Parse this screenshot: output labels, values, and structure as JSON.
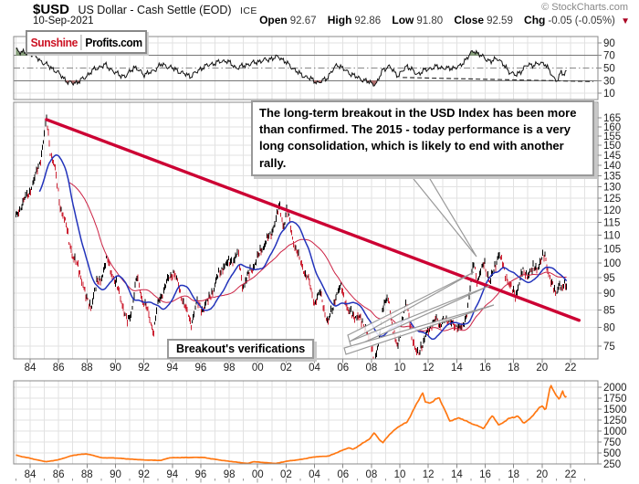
{
  "header": {
    "symbol": "$USD",
    "title": "US Dollar - Cash Settle (EOD)",
    "exchange": "ICE",
    "date": "10-Sep-2021",
    "copyright": "© StockCharts.com",
    "quote": {
      "open_label": "Open",
      "open": "92.67",
      "high_label": "High",
      "high": "92.86",
      "low_label": "Low",
      "low": "91.80",
      "close_label": "Close",
      "close": "92.59",
      "chg_label": "Chg",
      "chg": "-0.05 (-0.05%)",
      "down_arrow": "▼"
    }
  },
  "logo": {
    "part1": "Sunshine",
    "part2": "Profits.com"
  },
  "annotations": {
    "main_note": "The long-term breakout in the USD Index has been more than confirmed. The 2015 - today performance is a very long consolidation, which is likely to end with another rally.",
    "breakout_label": "Breakout's verifications"
  },
  "colors": {
    "candle_up": "#000000",
    "candle_down": "#cc2233",
    "trendline": "#cc0033",
    "ma_fast": "#2233bb",
    "ma_slow": "#cc2244",
    "gold_line": "#ff7711",
    "rsi_line": "#111111",
    "rsi_overbought_fill": "#7d9970",
    "rsi_oversold_fill": "#aa5f5f",
    "grid": "#e2e2e2",
    "panel_border": "#888888",
    "label_color": "#222222"
  },
  "axes": {
    "x_years": [
      1984,
      1986,
      1988,
      1990,
      1992,
      1994,
      1996,
      1998,
      2000,
      2002,
      2004,
      2006,
      2008,
      2010,
      2012,
      2014,
      2016,
      2018,
      2020,
      2022
    ],
    "x_labels": [
      "84",
      "86",
      "88",
      "90",
      "92",
      "94",
      "96",
      "98",
      "00",
      "02",
      "04",
      "06",
      "08",
      "10",
      "12",
      "14",
      "16",
      "18",
      "20",
      "22"
    ],
    "main_y": [
      165,
      160,
      155,
      150,
      145,
      140,
      135,
      130,
      125,
      120,
      115,
      110,
      105,
      100,
      95,
      90,
      85,
      80,
      75
    ],
    "rsi_y": [
      90,
      70,
      50,
      30,
      10
    ],
    "gold_y": [
      2000,
      1750,
      1500,
      1250,
      1000,
      750,
      500,
      250
    ]
  },
  "chart_data": [
    {
      "name": "RSI weekly indicator",
      "type": "line",
      "panel": "indicator-top",
      "ylim": [
        0,
        100
      ],
      "reference_levels": [
        70,
        50,
        30
      ],
      "dashed_trendline": {
        "from": [
          2010.2,
          35
        ],
        "to": [
          2023.6,
          28.5
        ]
      },
      "points": [
        [
          1983.0,
          80
        ],
        [
          1983.4,
          75
        ],
        [
          1984.2,
          72
        ],
        [
          1984.8,
          60
        ],
        [
          1985.4,
          52
        ],
        [
          1986.2,
          38
        ],
        [
          1986.7,
          26
        ],
        [
          1987.3,
          27
        ],
        [
          1987.8,
          34
        ],
        [
          1988.5,
          48
        ],
        [
          1989.3,
          55
        ],
        [
          1990.0,
          42
        ],
        [
          1990.7,
          36
        ],
        [
          1991.3,
          52
        ],
        [
          1992.0,
          40
        ],
        [
          1992.6,
          44
        ],
        [
          1993.2,
          56
        ],
        [
          1994.0,
          50
        ],
        [
          1994.7,
          42
        ],
        [
          1995.3,
          37
        ],
        [
          1996.2,
          52
        ],
        [
          1997.0,
          58
        ],
        [
          1997.8,
          62
        ],
        [
          1998.5,
          50
        ],
        [
          1999.2,
          55
        ],
        [
          2000.0,
          60
        ],
        [
          2000.8,
          64
        ],
        [
          2001.5,
          68
        ],
        [
          2002.2,
          55
        ],
        [
          2003.0,
          40
        ],
        [
          2003.8,
          32
        ],
        [
          2004.3,
          26
        ],
        [
          2004.9,
          35
        ],
        [
          2005.6,
          56
        ],
        [
          2006.3,
          44
        ],
        [
          2007.1,
          34
        ],
        [
          2007.9,
          27
        ],
        [
          2008.35,
          24
        ],
        [
          2008.8,
          48
        ],
        [
          2009.3,
          52
        ],
        [
          2009.9,
          37
        ],
        [
          2010.5,
          54
        ],
        [
          2011.2,
          40
        ],
        [
          2011.9,
          48
        ],
        [
          2012.6,
          52
        ],
        [
          2013.4,
          49
        ],
        [
          2014.2,
          52
        ],
        [
          2014.8,
          68
        ],
        [
          2015.2,
          78
        ],
        [
          2015.8,
          68
        ],
        [
          2016.4,
          60
        ],
        [
          2016.9,
          66
        ],
        [
          2017.6,
          46
        ],
        [
          2018.2,
          38
        ],
        [
          2018.9,
          54
        ],
        [
          2019.6,
          56
        ],
        [
          2020.2,
          58
        ],
        [
          2020.8,
          34
        ],
        [
          2021.1,
          31
        ],
        [
          2021.35,
          44
        ],
        [
          2021.55,
          38
        ],
        [
          2021.72,
          46
        ]
      ]
    },
    {
      "name": "USD Index weekly candlesticks",
      "type": "candlestick",
      "scale": "log",
      "ylim": [
        71,
        174
      ],
      "x_range": [
        1983.0,
        2023.9
      ],
      "trendline": {
        "name": "long-term declining resistance",
        "from": [
          1985.15,
          164
        ],
        "to": [
          2022.6,
          82
        ]
      },
      "moving_averages": [
        {
          "name": "fast moving average",
          "color": "#2233bb"
        },
        {
          "name": "slow moving average",
          "color": "#cc2244"
        }
      ],
      "points": [
        [
          1983.0,
          117
        ],
        [
          1983.4,
          122
        ],
        [
          1983.9,
          127
        ],
        [
          1984.3,
          133
        ],
        [
          1984.7,
          142
        ],
        [
          1984.95,
          152
        ],
        [
          1985.15,
          164
        ],
        [
          1985.45,
          146
        ],
        [
          1985.75,
          138
        ],
        [
          1986.1,
          122
        ],
        [
          1986.5,
          114
        ],
        [
          1987.0,
          102
        ],
        [
          1987.5,
          97
        ],
        [
          1987.95,
          88
        ],
        [
          1988.3,
          86
        ],
        [
          1988.7,
          93
        ],
        [
          1989.0,
          95
        ],
        [
          1989.45,
          101
        ],
        [
          1989.9,
          94
        ],
        [
          1990.3,
          90
        ],
        [
          1990.8,
          81
        ],
        [
          1991.1,
          84
        ],
        [
          1991.5,
          95
        ],
        [
          1991.9,
          88
        ],
        [
          1992.3,
          84
        ],
        [
          1992.7,
          78.5
        ],
        [
          1993.0,
          87
        ],
        [
          1993.4,
          91
        ],
        [
          1993.8,
          95
        ],
        [
          1994.1,
          97
        ],
        [
          1994.5,
          91
        ],
        [
          1994.9,
          86
        ],
        [
          1995.3,
          80.5
        ],
        [
          1995.7,
          87
        ],
        [
          1996.1,
          85
        ],
        [
          1996.6,
          88
        ],
        [
          1997.1,
          94
        ],
        [
          1997.6,
          99
        ],
        [
          1998.1,
          100
        ],
        [
          1998.6,
          103
        ],
        [
          1998.95,
          92
        ],
        [
          1999.5,
          97
        ],
        [
          1999.95,
          101
        ],
        [
          2000.5,
          107
        ],
        [
          2000.95,
          110
        ],
        [
          2001.3,
          117
        ],
        [
          2001.55,
          121
        ],
        [
          2001.8,
          113
        ],
        [
          2002.05,
          120
        ],
        [
          2002.5,
          108
        ],
        [
          2003.0,
          100
        ],
        [
          2003.5,
          95
        ],
        [
          2004.0,
          87
        ],
        [
          2004.4,
          90
        ],
        [
          2004.95,
          80.8
        ],
        [
          2005.5,
          89
        ],
        [
          2005.9,
          92
        ],
        [
          2006.4,
          84
        ],
        [
          2007.0,
          83
        ],
        [
          2007.6,
          80
        ],
        [
          2008.2,
          71.5
        ],
        [
          2008.6,
          77
        ],
        [
          2008.85,
          87
        ],
        [
          2009.15,
          89
        ],
        [
          2009.45,
          80
        ],
        [
          2009.9,
          74.8
        ],
        [
          2010.1,
          80
        ],
        [
          2010.45,
          88
        ],
        [
          2010.85,
          76.5
        ],
        [
          2011.35,
          73
        ],
        [
          2011.6,
          74.5
        ],
        [
          2011.85,
          79.5
        ],
        [
          2012.15,
          78.8
        ],
        [
          2012.55,
          83.5
        ],
        [
          2012.85,
          79.5
        ],
        [
          2013.2,
          83
        ],
        [
          2013.55,
          80.8
        ],
        [
          2013.95,
          80.5
        ],
        [
          2014.4,
          79.3
        ],
        [
          2014.75,
          85
        ],
        [
          2015.2,
          100
        ],
        [
          2015.45,
          93.5
        ],
        [
          2015.95,
          100
        ],
        [
          2016.35,
          93
        ],
        [
          2016.95,
          103.2
        ],
        [
          2017.5,
          95
        ],
        [
          2018.1,
          88.7
        ],
        [
          2018.6,
          96.5
        ],
        [
          2019.0,
          96
        ],
        [
          2019.35,
          97.5
        ],
        [
          2019.75,
          99
        ],
        [
          2020.2,
          102.5
        ],
        [
          2020.6,
          93.5
        ],
        [
          2020.95,
          89.8
        ],
        [
          2021.15,
          92.5
        ],
        [
          2021.25,
          93.3
        ],
        [
          2021.4,
          89.8
        ],
        [
          2021.55,
          93
        ],
        [
          2021.65,
          91.9
        ],
        [
          2021.72,
          92.6
        ]
      ]
    },
    {
      "name": "Gold price",
      "type": "line",
      "panel": "bottom",
      "ylim": [
        30,
        2150
      ],
      "points": [
        [
          1983.0,
          450
        ],
        [
          1983.5,
          410
        ],
        [
          1984.0,
          380
        ],
        [
          1984.5,
          340
        ],
        [
          1985.15,
          300
        ],
        [
          1986.0,
          345
        ],
        [
          1987.0,
          445
        ],
        [
          1987.9,
          480
        ],
        [
          1988.5,
          440
        ],
        [
          1989.0,
          390
        ],
        [
          1990.0,
          385
        ],
        [
          1991.0,
          360
        ],
        [
          1992.0,
          340
        ],
        [
          1993.2,
          330
        ],
        [
          1993.8,
          390
        ],
        [
          1996.1,
          400
        ],
        [
          1997.5,
          330
        ],
        [
          1999.3,
          260
        ],
        [
          1999.7,
          300
        ],
        [
          2001.3,
          260
        ],
        [
          2002.0,
          310
        ],
        [
          2003.0,
          350
        ],
        [
          2004.0,
          410
        ],
        [
          2005.0,
          430
        ],
        [
          2006.4,
          620
        ],
        [
          2006.7,
          580
        ],
        [
          2007.1,
          660
        ],
        [
          2007.9,
          830
        ],
        [
          2008.2,
          960
        ],
        [
          2008.6,
          790
        ],
        [
          2008.8,
          730
        ],
        [
          2009.2,
          900
        ],
        [
          2009.9,
          1100
        ],
        [
          2010.5,
          1200
        ],
        [
          2011.6,
          1880
        ],
        [
          2011.8,
          1650
        ],
        [
          2012.2,
          1650
        ],
        [
          2012.75,
          1770
        ],
        [
          2013.3,
          1380
        ],
        [
          2013.5,
          1230
        ],
        [
          2014.2,
          1300
        ],
        [
          2014.9,
          1190
        ],
        [
          2015.9,
          1060
        ],
        [
          2016.5,
          1360
        ],
        [
          2016.95,
          1130
        ],
        [
          2017.7,
          1290
        ],
        [
          2018.3,
          1340
        ],
        [
          2018.7,
          1180
        ],
        [
          2019.2,
          1290
        ],
        [
          2019.7,
          1500
        ],
        [
          2020.0,
          1570
        ],
        [
          2020.25,
          1480
        ],
        [
          2020.6,
          2050
        ],
        [
          2020.75,
          1950
        ],
        [
          2021.2,
          1720
        ],
        [
          2021.45,
          1900
        ],
        [
          2021.6,
          1780
        ],
        [
          2021.72,
          1790
        ]
      ]
    }
  ]
}
